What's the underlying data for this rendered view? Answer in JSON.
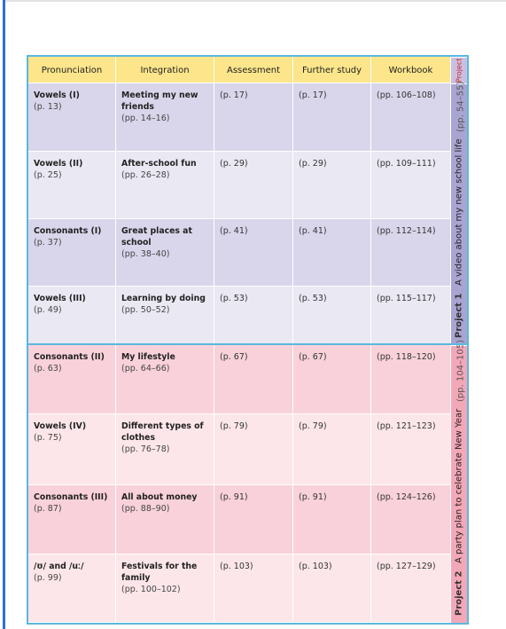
{
  "table": {
    "columns": [
      "Pronunciation",
      "Integration",
      "Assessment",
      "Further study",
      "Workbook"
    ],
    "project_header": "Project",
    "rows": [
      [
        {
          "main": "Vowels (I)",
          "pages": "(p. 13)"
        },
        {
          "main": "Meeting my new friends",
          "pages": "(pp. 14–16)"
        },
        "(p. 17)",
        "(p. 17)",
        "(pp. 106–108)"
      ],
      [
        {
          "main": "Vowels (II)",
          "pages": "(p. 25)"
        },
        {
          "main": "After-school fun",
          "pages": "(pp. 26–28)"
        },
        "(p. 29)",
        "(p. 29)",
        "(pp. 109–111)"
      ],
      [
        {
          "main": "Consonants (I)",
          "pages": "(p. 37)"
        },
        {
          "main": "Great places at school",
          "pages": "(pp. 38–40)"
        },
        "(p. 41)",
        "(p. 41)",
        "(pp. 112–114)"
      ],
      [
        {
          "main": "Vowels (III)",
          "pages": "(p. 49)"
        },
        {
          "main": "Learning by doing",
          "pages": "(pp. 50–52)"
        },
        "(p. 53)",
        "(p. 53)",
        "(pp. 115–117)"
      ],
      [
        {
          "main": "Consonants (II)",
          "pages": "(p. 63)"
        },
        {
          "main": "My lifestyle",
          "pages": "(pp. 64–66)"
        },
        "(p. 67)",
        "(p. 67)",
        "(pp. 118–120)"
      ],
      [
        {
          "main": "Vowels (IV)",
          "pages": "(p. 75)"
        },
        {
          "main": "Different types of clothes",
          "pages": "(pp. 76–78)"
        },
        "(p. 79)",
        "(p. 79)",
        "(pp. 121–123)"
      ],
      [
        {
          "main": "Consonants (III)",
          "pages": "(p. 87)"
        },
        {
          "main": "All about money",
          "pages": "(pp. 88–90)"
        },
        "(p. 91)",
        "(p. 91)",
        "(pp. 124–126)"
      ],
      [
        {
          "main": "/ʊ/ and /uː/",
          "pages": "(p. 99)"
        },
        {
          "main": "Festivals for the family",
          "pages": "(pp. 100–102)"
        },
        "(p. 103)",
        "(p. 103)",
        "(pp. 127–129)"
      ]
    ],
    "projects": [
      {
        "label": "Project 1",
        "title": "A video about my new school life",
        "pages": "(pp. 54–55)"
      },
      {
        "label": "Project 2",
        "title": "A party plan to celebrate New Year",
        "pages": "(pp. 104–105)"
      }
    ]
  }
}
